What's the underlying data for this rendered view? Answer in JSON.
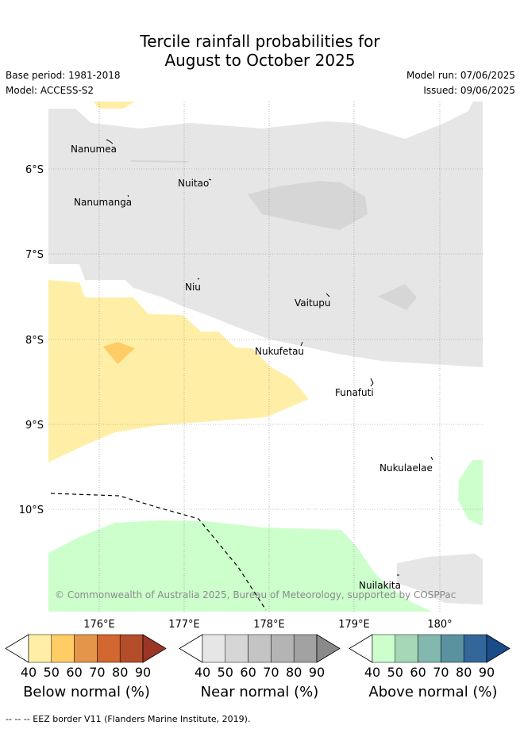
{
  "title_line1": "Tercile rainfall probabilities for",
  "title_line2": "August to October 2025",
  "base_period": "Base period: 1981-2018",
  "model": "Model: ACCESS-S2",
  "model_run": "Model run: 07/06/2025",
  "issued": "Issued: 09/06/2025",
  "copyright": "© Commonwealth of Australia 2025, Bureau of Meteorology, supported by COSPPac",
  "footer": "--  --  -- EEZ border V11 (Flanders Marine Institute, 2019).",
  "lat_labels": [
    "6°S",
    "7°S",
    "8°S",
    "9°S",
    "10°S"
  ],
  "lon_labels": [
    "176°E",
    "177°E",
    "178°E",
    "179°E",
    "180°"
  ],
  "islands": [
    "Nanumea",
    "Nuitao",
    "Nanumanga",
    "Niu",
    "Vaitupu",
    "Nukufetau",
    "Funafuti",
    "Nukulaelae",
    "Nuilakita"
  ],
  "legends": [
    {
      "label": "Below normal (%)",
      "ticks": [
        "40",
        "50",
        "60",
        "70",
        "80",
        "90"
      ],
      "colors": [
        "#ffefa6",
        "#ffcc66",
        "#e4954a",
        "#d2672f",
        "#b44d2a",
        "#9c3526"
      ]
    },
    {
      "label": "Near normal (%)",
      "ticks": [
        "40",
        "50",
        "60",
        "70",
        "80",
        "90"
      ],
      "colors": [
        "#e6e6e6",
        "#d6d6d6",
        "#c4c4c4",
        "#b4b4b4",
        "#a2a2a2",
        "#8a8a8a"
      ]
    },
    {
      "label": "Above normal (%)",
      "ticks": [
        "40",
        "50",
        "60",
        "70",
        "80",
        "90"
      ],
      "colors": [
        "#ccffcc",
        "#a6d8b8",
        "#82b8b0",
        "#5a92a0",
        "#336699",
        "#1a4c8a"
      ]
    }
  ],
  "colors": {
    "near_40": "#e6e6e6",
    "near_50": "#d6d6d6",
    "below_40": "#ffefa6",
    "below_50": "#ffcc66",
    "above_40": "#ccffcc"
  }
}
